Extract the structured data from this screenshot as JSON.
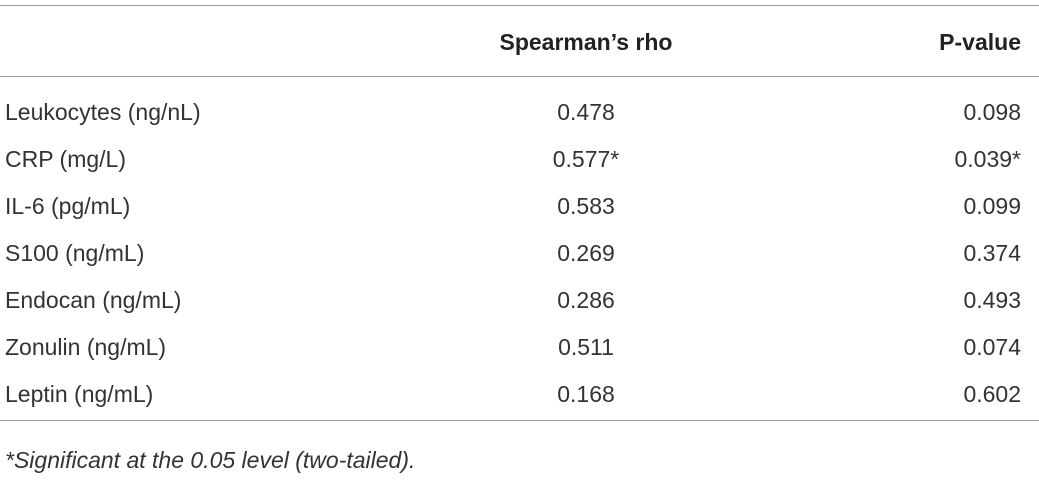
{
  "table": {
    "header": [
      "",
      "Spearman’s rho",
      "P-value"
    ],
    "rows": [
      [
        "Leukocytes (ng/nL)",
        "0.478",
        "0.098"
      ],
      [
        "CRP (mg/L)",
        "0.577*",
        "0.039*"
      ],
      [
        "IL-6 (pg/mL)",
        "0.583",
        "0.099"
      ],
      [
        "S100 (ng/mL)",
        "0.269",
        "0.374"
      ],
      [
        "Endocan (ng/mL)",
        "0.286",
        "0.493"
      ],
      [
        "Zonulin (ng/mL)",
        "0.511",
        "0.074"
      ],
      [
        "Leptin (ng/mL)",
        "0.168",
        "0.602"
      ]
    ],
    "footnote": "*Significant at the 0.05 level (two-tailed)."
  }
}
